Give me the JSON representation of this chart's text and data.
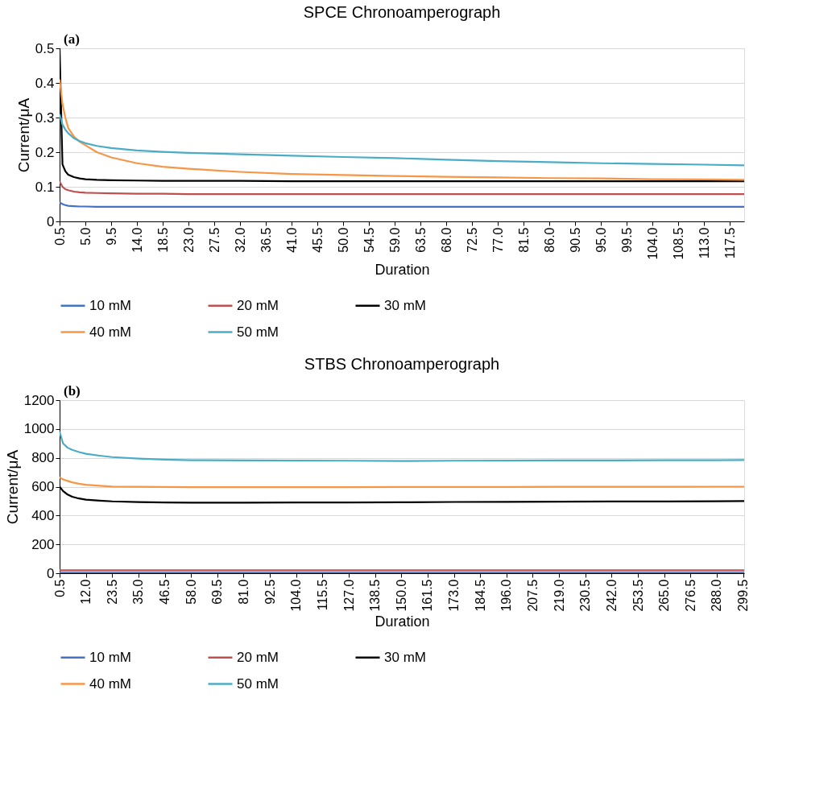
{
  "chart_data": [
    {
      "type": "line",
      "title": "SPCE Chronoamperograph",
      "xlabel": "Duration",
      "ylabel": "Current/μA",
      "annotations": [
        "(a)"
      ],
      "x": [
        0.5,
        1,
        1.5,
        2,
        3,
        4,
        5,
        7,
        9.5,
        14,
        18.5,
        23,
        32,
        41,
        50,
        59,
        68,
        77,
        86,
        95,
        104,
        113,
        120
      ],
      "series": [
        {
          "name": "10 mM",
          "color": "#4472c4",
          "values": [
            0.055,
            0.05,
            0.047,
            0.045,
            0.044,
            0.043,
            0.043,
            0.042,
            0.042,
            0.042,
            0.042,
            0.042,
            0.042,
            0.042,
            0.042,
            0.042,
            0.042,
            0.042,
            0.042,
            0.042,
            0.042,
            0.042,
            0.042
          ]
        },
        {
          "name": "20 mM",
          "color": "#c0504d",
          "values": [
            0.115,
            0.1,
            0.093,
            0.09,
            0.086,
            0.084,
            0.083,
            0.082,
            0.081,
            0.08,
            0.08,
            0.079,
            0.079,
            0.079,
            0.079,
            0.079,
            0.079,
            0.079,
            0.079,
            0.079,
            0.079,
            0.079,
            0.079
          ]
        },
        {
          "name": "30 mM",
          "color": "#000000",
          "values": [
            0.5,
            0.165,
            0.145,
            0.135,
            0.128,
            0.124,
            0.122,
            0.12,
            0.119,
            0.118,
            0.117,
            0.117,
            0.117,
            0.116,
            0.116,
            0.116,
            0.116,
            0.116,
            0.116,
            0.116,
            0.116,
            0.116,
            0.116
          ]
        },
        {
          "name": "40 mM",
          "color": "#f79646",
          "values": [
            0.41,
            0.34,
            0.3,
            0.27,
            0.245,
            0.23,
            0.22,
            0.2,
            0.185,
            0.168,
            0.158,
            0.152,
            0.143,
            0.137,
            0.134,
            0.131,
            0.129,
            0.127,
            0.125,
            0.124,
            0.122,
            0.121,
            0.12
          ]
        },
        {
          "name": "50 mM",
          "color": "#4bacc6",
          "values": [
            0.31,
            0.28,
            0.265,
            0.255,
            0.24,
            0.232,
            0.226,
            0.218,
            0.212,
            0.205,
            0.201,
            0.198,
            0.194,
            0.19,
            0.186,
            0.183,
            0.178,
            0.174,
            0.171,
            0.168,
            0.166,
            0.164,
            0.162
          ]
        }
      ],
      "xlim": [
        0.5,
        120
      ],
      "xticks": [
        0.5,
        {
          "value": 5,
          "label": "5.0"
        },
        9.5,
        {
          "value": 14,
          "label": "14.0"
        },
        18.5,
        {
          "value": 23,
          "label": "23.0"
        },
        27.5,
        {
          "value": 32,
          "label": "32.0"
        },
        36.5,
        {
          "value": 41,
          "label": "41.0"
        },
        45.5,
        {
          "value": 50,
          "label": "50.0"
        },
        54.5,
        {
          "value": 59,
          "label": "59.0"
        },
        63.5,
        {
          "value": 68,
          "label": "68.0"
        },
        72.5,
        {
          "value": 77,
          "label": "77.0"
        },
        81.5,
        {
          "value": 86,
          "label": "86.0"
        },
        90.5,
        {
          "value": 95,
          "label": "95.0"
        },
        99.5,
        {
          "value": 104,
          "label": "104.0"
        },
        108.5,
        {
          "value": 113,
          "label": "113.0"
        },
        117.5
      ],
      "ylim": [
        0,
        0.5
      ],
      "yticks": [
        0,
        0.1,
        0.2,
        0.3,
        0.4,
        0.5
      ],
      "grid": "y",
      "legend": "bottom",
      "line_style": "solid"
    },
    {
      "type": "line",
      "title": "STBS Chronoamperograph",
      "xlabel": "Duration",
      "ylabel": "Current/μA",
      "annotations": [
        "(b)"
      ],
      "x": [
        0.5,
        2,
        4,
        6,
        9,
        12,
        18,
        23.5,
        35,
        46.5,
        58,
        81,
        104,
        127,
        150,
        173,
        196,
        219,
        242,
        265,
        288,
        300
      ],
      "series": [
        {
          "name": "10 mM",
          "color": "#4472c4",
          "values": [
            3,
            3,
            3,
            3,
            3,
            3,
            3,
            3,
            3,
            3,
            3,
            3,
            3,
            3,
            3,
            3,
            3,
            3,
            3,
            3,
            3,
            3
          ]
        },
        {
          "name": "20 mM",
          "color": "#c0504d",
          "values": [
            20,
            20,
            20,
            20,
            20,
            20,
            20,
            20,
            20,
            20,
            20,
            20,
            20,
            20,
            20,
            20,
            20,
            20,
            20,
            20,
            20,
            20
          ]
        },
        {
          "name": "30 mM",
          "color": "#000000",
          "values": [
            600,
            570,
            545,
            530,
            518,
            510,
            503,
            498,
            493,
            490,
            489,
            489,
            490,
            491,
            492,
            494,
            495,
            496,
            497,
            498,
            499,
            500
          ]
        },
        {
          "name": "40 mM",
          "color": "#f79646",
          "values": [
            665,
            650,
            640,
            630,
            620,
            613,
            606,
            601,
            599,
            598,
            597,
            597,
            597,
            597,
            598,
            598,
            598,
            599,
            599,
            599,
            600,
            600
          ]
        },
        {
          "name": "50 mM",
          "color": "#4bacc6",
          "values": [
            980,
            900,
            870,
            855,
            840,
            828,
            815,
            805,
            795,
            788,
            784,
            782,
            781,
            780,
            778,
            780,
            781,
            782,
            782,
            783,
            784,
            785
          ]
        }
      ],
      "xlim": [
        0.5,
        300
      ],
      "xticks": [
        0.5,
        {
          "value": 12,
          "label": "12.0"
        },
        23.5,
        {
          "value": 35,
          "label": "35.0"
        },
        46.5,
        {
          "value": 58,
          "label": "58.0"
        },
        69.5,
        {
          "value": 81,
          "label": "81.0"
        },
        92.5,
        {
          "value": 104,
          "label": "104.0"
        },
        115.5,
        {
          "value": 127,
          "label": "127.0"
        },
        138.5,
        {
          "value": 150,
          "label": "150.0"
        },
        161.5,
        {
          "value": 173,
          "label": "173.0"
        },
        184.5,
        {
          "value": 196,
          "label": "196.0"
        },
        207.5,
        {
          "value": 219,
          "label": "219.0"
        },
        230.5,
        {
          "value": 242,
          "label": "242.0"
        },
        253.5,
        {
          "value": 265,
          "label": "265.0"
        },
        276.5,
        {
          "value": 288,
          "label": "288.0"
        },
        299.5
      ],
      "ylim": [
        0,
        1200
      ],
      "yticks": [
        0,
        200,
        400,
        600,
        800,
        1000,
        1200
      ],
      "grid": "y",
      "legend": "bottom",
      "line_style": "solid"
    }
  ]
}
